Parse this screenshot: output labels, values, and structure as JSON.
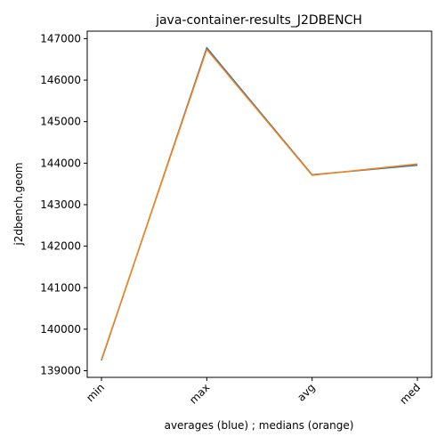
{
  "chart_data": {
    "type": "line",
    "title": "java-container-results_J2DBENCH",
    "xlabel": "averages (blue) ; medians (orange)",
    "ylabel": "j2dbench.geom",
    "categories": [
      "min",
      "max",
      "avg",
      "med"
    ],
    "ylim": [
      138840,
      147180
    ],
    "yticks": [
      139000,
      140000,
      141000,
      142000,
      143000,
      144000,
      145000,
      146000,
      147000
    ],
    "ytick_labels": [
      "139000",
      "140000",
      "141000",
      "142000",
      "143000",
      "144000",
      "145000",
      "146000",
      "147000"
    ],
    "grid": false,
    "series": [
      {
        "color": "#1f77b4",
        "values": [
          139250,
          146780,
          143720,
          143950
        ]
      },
      {
        "color": "#ff7f0e",
        "values": [
          139270,
          146740,
          143710,
          143980
        ]
      }
    ]
  }
}
